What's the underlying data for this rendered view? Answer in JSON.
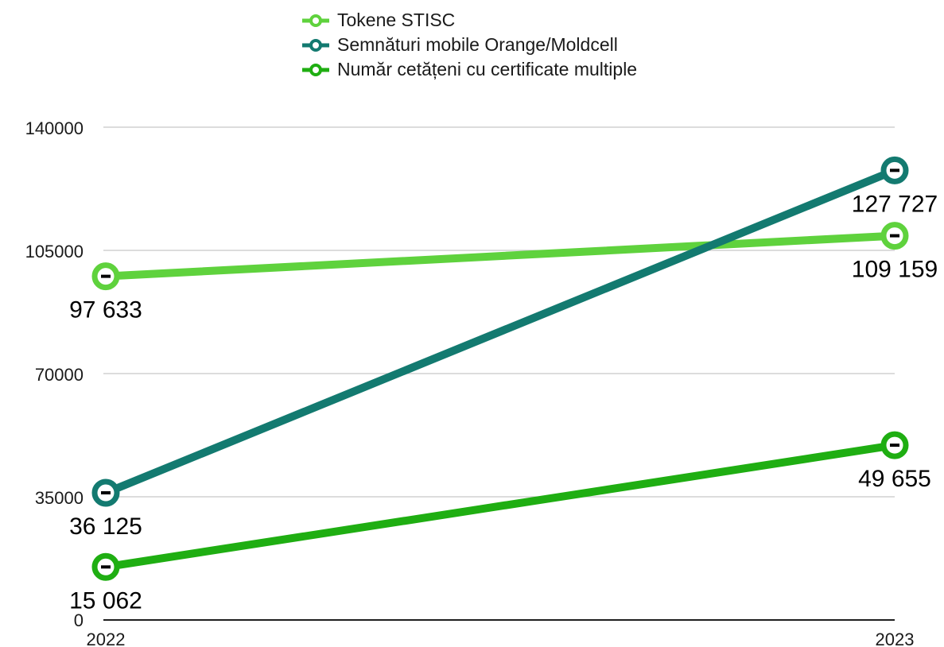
{
  "chart_data": {
    "type": "line",
    "categories": [
      "2022",
      "2023"
    ],
    "ylim": [
      0,
      140000
    ],
    "yticks": [
      0,
      35000,
      70000,
      105000,
      140000
    ],
    "grid": true,
    "legend_position": "top-center",
    "series": [
      {
        "name": "Tokene STISC",
        "values": [
          97633,
          109159
        ],
        "labels": [
          "97 633",
          "109 159"
        ],
        "color": "#5fd23d"
      },
      {
        "name": "Semnături mobile Orange/Moldcell",
        "values": [
          36125,
          127727
        ],
        "labels": [
          "36 125",
          "127 727"
        ],
        "color": "#137a70"
      },
      {
        "name": "Număr cetățeni cu certificate multiple",
        "values": [
          15062,
          49655
        ],
        "labels": [
          "15 062",
          "49 655"
        ],
        "color": "#1fae12"
      }
    ]
  }
}
